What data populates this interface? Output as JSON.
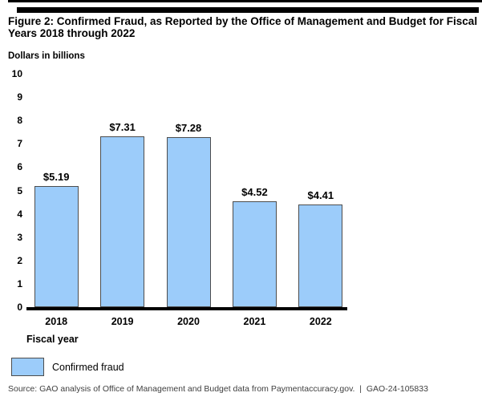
{
  "header": {
    "title": "Figure 2: Confirmed Fraud, as Reported by the Office of Management and Budget for Fiscal Years 2018 through 2022"
  },
  "chart_data": {
    "type": "bar",
    "title": "Confirmed Fraud, as Reported by the Office of Management and Budget for Fiscal Years 2018 through 2022",
    "ylabel": "Dollars in billions",
    "xlabel": "Fiscal year",
    "categories": [
      "2018",
      "2019",
      "2020",
      "2021",
      "2022"
    ],
    "values": [
      5.19,
      7.31,
      7.28,
      4.52,
      4.41
    ],
    "value_labels": [
      "$5.19",
      "$7.31",
      "$7.28",
      "$4.52",
      "$4.41"
    ],
    "ylim": [
      0,
      10
    ],
    "ytick_step": 1,
    "grid": false,
    "legend_position": "bottom-left",
    "legend": [
      {
        "label": "Confirmed fraud",
        "color": "#9CCCFA"
      }
    ],
    "colors": {
      "bar_fill": "#9CCCFA",
      "bar_border": "#4d4d4d",
      "baseline": "#000000"
    }
  },
  "footer": {
    "source": "Source: GAO analysis of Office of Management and Budget data from Paymentaccuracy.gov.  |  GAO-24-105833"
  }
}
